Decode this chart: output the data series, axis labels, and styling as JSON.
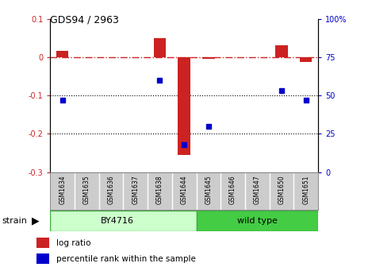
{
  "title": "GDS94 / 2963",
  "samples": [
    "GSM1634",
    "GSM1635",
    "GSM1636",
    "GSM1637",
    "GSM1638",
    "GSM1644",
    "GSM1645",
    "GSM1646",
    "GSM1647",
    "GSM1650",
    "GSM1651"
  ],
  "log_ratio": [
    0.017,
    0.0,
    0.0,
    0.0,
    0.05,
    -0.255,
    -0.005,
    0.0,
    0.0,
    0.03,
    -0.013
  ],
  "percentile_rank": [
    47,
    null,
    null,
    null,
    60,
    18,
    30,
    null,
    null,
    53,
    47
  ],
  "group_by4716_count": 6,
  "group_wt_count": 5,
  "ylim_left": [
    -0.3,
    0.1
  ],
  "ylim_right": [
    0,
    100
  ],
  "bar_color": "#CC2222",
  "dot_color": "#0000CC",
  "bg_color": "white",
  "right_ticks": [
    0,
    25,
    50,
    75,
    100
  ],
  "right_tick_labels": [
    "0",
    "25",
    "50",
    "75",
    "100%"
  ],
  "left_ticks": [
    -0.3,
    -0.2,
    -0.1,
    0.0,
    0.1
  ],
  "left_tick_labels": [
    "-0.3",
    "-0.2",
    "-0.1",
    "0",
    "0.1"
  ],
  "by4716_color": "#CCFFCC",
  "wildtype_color": "#44CC44",
  "sample_box_color": "#CCCCCC",
  "sample_box_edge": "#888888"
}
